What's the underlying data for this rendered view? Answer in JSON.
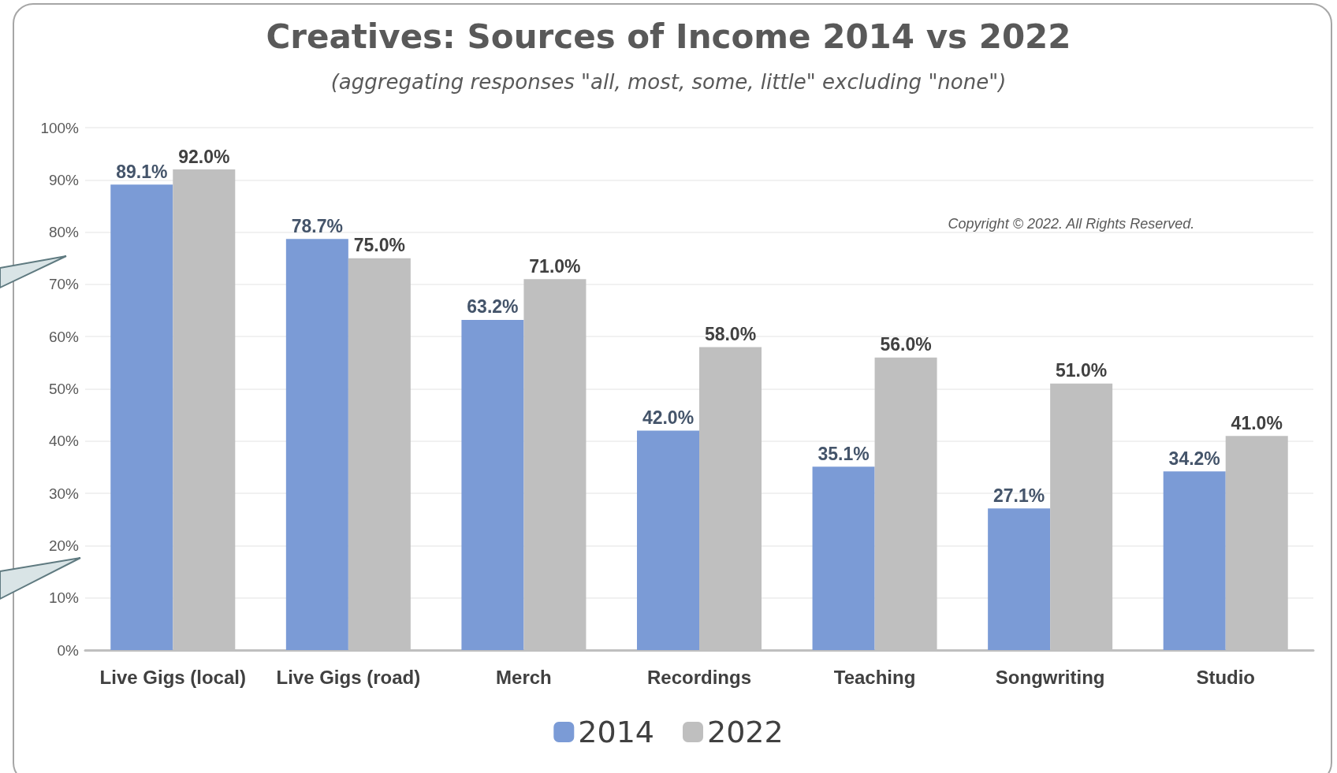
{
  "chart_data": {
    "type": "bar",
    "title": "Creatives: Sources of Income 2014 vs 2022",
    "subtitle": "(aggregating responses \"all, most, some, little\" excluding \"none\")",
    "categories": [
      "Live Gigs (local)",
      "Live Gigs (road)",
      "Merch",
      "Recordings",
      "Teaching",
      "Songwriting",
      "Studio"
    ],
    "series": [
      {
        "name": "2014",
        "color": "#7b9bd6",
        "values": [
          89.1,
          78.7,
          63.2,
          42.0,
          35.1,
          27.1,
          34.2
        ],
        "value_labels": [
          "89.1%",
          "78.7%",
          "63.2%",
          "42.0%",
          "35.1%",
          "27.1%",
          "34.2%"
        ]
      },
      {
        "name": "2022",
        "color": "#bfbfbf",
        "values": [
          92.0,
          75.0,
          71.0,
          58.0,
          56.0,
          51.0,
          41.0
        ],
        "value_labels": [
          "92.0%",
          "75.0%",
          "71.0%",
          "58.0%",
          "56.0%",
          "51.0%",
          "41.0%"
        ]
      }
    ],
    "ylim": [
      0,
      100
    ],
    "yticks": [
      {
        "value": 0,
        "label": "0%"
      },
      {
        "value": 10,
        "label": "10%"
      },
      {
        "value": 20,
        "label": "20%"
      },
      {
        "value": 30,
        "label": "30%"
      },
      {
        "value": 40,
        "label": "40%"
      },
      {
        "value": 50,
        "label": "50%"
      },
      {
        "value": 60,
        "label": "60%"
      },
      {
        "value": 70,
        "label": "70%"
      },
      {
        "value": 80,
        "label": "80%"
      },
      {
        "value": 90,
        "label": "90%"
      },
      {
        "value": 100,
        "label": "100%"
      }
    ],
    "grid": "y",
    "legend": "bottom",
    "annotations": [
      "Copyright © 2022. All Rights Reserved."
    ]
  }
}
